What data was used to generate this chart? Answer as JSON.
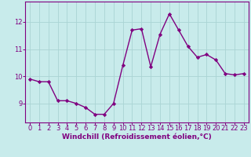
{
  "x": [
    0,
    1,
    2,
    3,
    4,
    5,
    6,
    7,
    8,
    9,
    10,
    11,
    12,
    13,
    14,
    15,
    16,
    17,
    18,
    19,
    20,
    21,
    22,
    23
  ],
  "y": [
    9.9,
    9.8,
    9.8,
    9.1,
    9.1,
    9.0,
    8.85,
    8.6,
    8.6,
    9.0,
    10.4,
    11.7,
    11.75,
    10.35,
    11.55,
    12.3,
    11.7,
    11.1,
    10.7,
    10.8,
    10.6,
    10.1,
    10.05,
    10.1
  ],
  "line_color": "#800080",
  "marker": "D",
  "marker_size": 2.2,
  "linewidth": 1.0,
  "bg_color": "#c8ebeb",
  "grid_color": "#aad4d4",
  "xlabel": "Windchill (Refroidissement éolien,°C)",
  "xlabel_color": "#800080",
  "xlabel_fontsize": 6.5,
  "tick_color": "#800080",
  "tick_fontsize": 6.0,
  "ylim": [
    8.3,
    12.75
  ],
  "yticks": [
    9,
    10,
    11,
    12
  ],
  "xlim": [
    -0.5,
    23.5
  ],
  "xticks": [
    0,
    1,
    2,
    3,
    4,
    5,
    6,
    7,
    8,
    9,
    10,
    11,
    12,
    13,
    14,
    15,
    16,
    17,
    18,
    19,
    20,
    21,
    22,
    23
  ],
  "spine_color": "#800080",
  "spine_linewidth": 0.8
}
